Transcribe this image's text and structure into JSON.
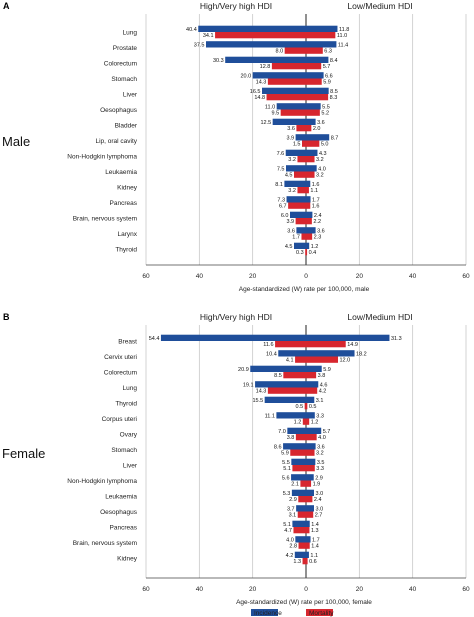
{
  "colors": {
    "incidence": "#1f4e9a",
    "mortality": "#d7262e",
    "grid": "#c8c8c8"
  },
  "legend": {
    "incidence": "Incidence",
    "mortality": "Mortality"
  },
  "chart_data": [
    {
      "type": "bar",
      "panel": "A",
      "sex_label": "Male",
      "left_header": "High/Very high HDI",
      "right_header": "Low/Medium HDI",
      "xlabel": "Age-standardized (W) rate per 100,000, male",
      "xlim": [
        -60,
        60
      ],
      "ticks": [
        "60",
        "40",
        "20",
        "0",
        "20",
        "40",
        "60"
      ],
      "grid": true,
      "categories": [
        "Lung",
        "Prostate",
        "Colorectum",
        "Stomach",
        "Liver",
        "Oesophagus",
        "Bladder",
        "Lip, oral cavity",
        "Non-Hodgkin lymphoma",
        "Leukaemia",
        "Kidney",
        "Pancreas",
        "Brain, nervous system",
        "Larynx",
        "Thyroid"
      ],
      "high_incidence": [
        40.4,
        37.5,
        30.3,
        20.0,
        16.5,
        11.0,
        12.5,
        3.9,
        7.6,
        7.5,
        8.1,
        7.3,
        6.0,
        3.6,
        4.5
      ],
      "high_mortality": [
        34.1,
        8.0,
        12.8,
        14.3,
        14.8,
        9.5,
        3.6,
        1.5,
        3.2,
        4.5,
        3.2,
        6.7,
        3.9,
        1.7,
        0.3
      ],
      "low_incidence": [
        11.8,
        11.4,
        8.4,
        6.6,
        8.5,
        5.5,
        3.6,
        8.7,
        4.3,
        4.0,
        1.6,
        1.7,
        2.4,
        3.6,
        1.2
      ],
      "low_mortality": [
        11.0,
        6.3,
        5.7,
        5.9,
        8.3,
        5.2,
        2.0,
        5.0,
        3.2,
        3.2,
        1.1,
        1.6,
        2.2,
        2.3,
        0.4
      ]
    },
    {
      "type": "bar",
      "panel": "B",
      "sex_label": "Female",
      "left_header": "High/Very high HDI",
      "right_header": "Low/Medium HDI",
      "xlabel": "Age-standardized (W) rate per 100,000, female",
      "xlim": [
        -60,
        60
      ],
      "ticks": [
        "60",
        "40",
        "20",
        "0",
        "20",
        "40",
        "60"
      ],
      "grid": true,
      "categories": [
        "Breast",
        "Cervix uteri",
        "Colorectum",
        "Lung",
        "Thyroid",
        "Corpus uteri",
        "Ovary",
        "Stomach",
        "Liver",
        "Non-Hodgkin lymphoma",
        "Leukaemia",
        "Oesophagus",
        "Pancreas",
        "Brain, nervous system",
        "Kidney"
      ],
      "high_incidence": [
        54.4,
        10.4,
        20.9,
        19.1,
        15.5,
        11.1,
        7.0,
        8.6,
        5.5,
        5.6,
        5.3,
        3.7,
        5.1,
        4.0,
        4.2
      ],
      "high_mortality": [
        11.6,
        4.1,
        8.5,
        14.3,
        0.5,
        1.2,
        3.8,
        5.9,
        5.1,
        2.1,
        2.9,
        3.1,
        4.7,
        2.8,
        1.3
      ],
      "low_incidence": [
        31.3,
        18.2,
        5.9,
        4.6,
        3.1,
        3.3,
        5.7,
        3.6,
        3.5,
        2.9,
        3.0,
        3.0,
        1.4,
        1.7,
        1.1
      ],
      "low_mortality": [
        14.9,
        12.0,
        3.8,
        4.2,
        0.5,
        1.2,
        4.0,
        3.2,
        3.3,
        1.9,
        2.4,
        2.7,
        1.3,
        1.4,
        0.6
      ]
    }
  ]
}
